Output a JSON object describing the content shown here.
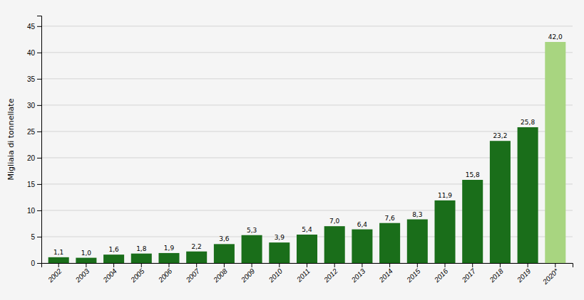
{
  "chart_data": {
    "type": "bar",
    "categories": [
      "2002",
      "2003",
      "2004",
      "2005",
      "2006",
      "2007",
      "2008",
      "2009",
      "2010",
      "2011",
      "2012",
      "2013",
      "2014",
      "2015",
      "2016",
      "2017",
      "2018",
      "2019",
      "2020*"
    ],
    "values": [
      1.1,
      1.0,
      1.6,
      1.8,
      1.9,
      2.2,
      3.6,
      5.3,
      3.9,
      5.4,
      7.0,
      6.4,
      7.6,
      8.3,
      11.9,
      15.8,
      23.2,
      25.8,
      42.0
    ],
    "value_labels": [
      "1,1",
      "1,0",
      "1,6",
      "1,8",
      "1,9",
      "2,2",
      "3,6",
      "5,3",
      "3,9",
      "5,4",
      "7,0",
      "6,4",
      "7,6",
      "8,3",
      "11,9",
      "15,8",
      "23,2",
      "25,8",
      "42,0"
    ],
    "colors": [
      "#1a6e1a",
      "#1a6e1a",
      "#1a6e1a",
      "#1a6e1a",
      "#1a6e1a",
      "#1a6e1a",
      "#1a6e1a",
      "#1a6e1a",
      "#1a6e1a",
      "#1a6e1a",
      "#1a6e1a",
      "#1a6e1a",
      "#1a6e1a",
      "#1a6e1a",
      "#1a6e1a",
      "#1a6e1a",
      "#1a6e1a",
      "#1a6e1a",
      "#a8d580"
    ],
    "ylabel": "Migliaia di tonnellate",
    "ylim": [
      0,
      47
    ],
    "yticks": [
      0,
      5,
      10,
      15,
      20,
      25,
      30,
      35,
      40,
      45
    ],
    "grid": true,
    "data_labels": true
  }
}
